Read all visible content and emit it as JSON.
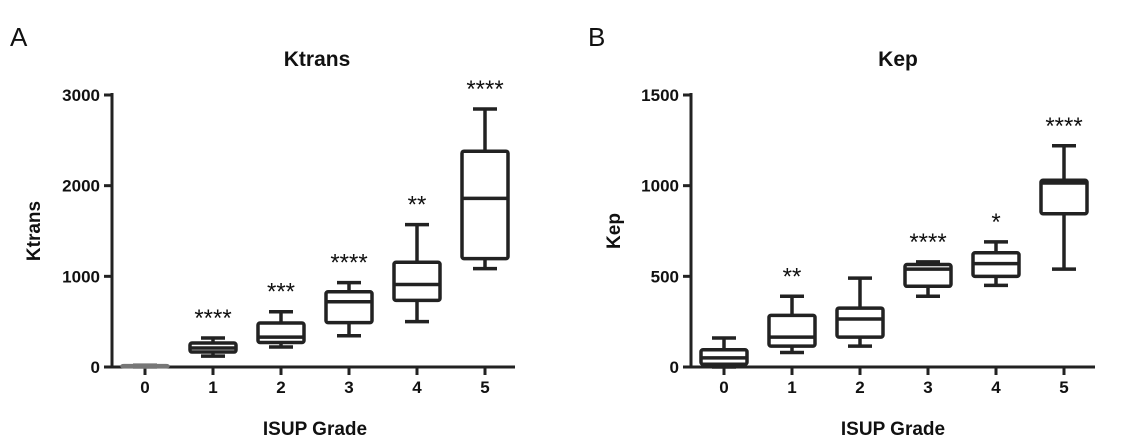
{
  "chart_data": [
    {
      "type": "box",
      "panel_label": "A",
      "title": "Ktrans",
      "xlabel": "ISUP Grade",
      "ylabel": "Ktrans",
      "ylim": [
        0,
        3000
      ],
      "yticks": [
        0,
        1000,
        2000,
        3000
      ],
      "categories": [
        "0",
        "1",
        "2",
        "3",
        "4",
        "5"
      ],
      "boxes": [
        {
          "min": 0,
          "q1": 5,
          "median": 10,
          "q3": 15,
          "max": 20
        },
        {
          "min": 120,
          "q1": 165,
          "median": 210,
          "q3": 265,
          "max": 320
        },
        {
          "min": 220,
          "q1": 270,
          "median": 330,
          "q3": 485,
          "max": 610
        },
        {
          "min": 345,
          "q1": 490,
          "median": 720,
          "q3": 830,
          "max": 930
        },
        {
          "min": 500,
          "q1": 735,
          "median": 910,
          "q3": 1155,
          "max": 1570
        },
        {
          "min": 1085,
          "q1": 1195,
          "median": 1860,
          "q3": 2380,
          "max": 2845
        }
      ],
      "significance": [
        "",
        "****",
        "***",
        "****",
        "**",
        "****"
      ]
    },
    {
      "type": "box",
      "panel_label": "B",
      "title": "Kep",
      "xlabel": "ISUP Grade",
      "ylabel": "Kep",
      "ylim": [
        0,
        1500
      ],
      "yticks": [
        0,
        500,
        1000,
        1500
      ],
      "categories": [
        "0",
        "1",
        "2",
        "3",
        "4",
        "5"
      ],
      "boxes": [
        {
          "min": 0,
          "q1": 15,
          "median": 50,
          "q3": 95,
          "max": 160
        },
        {
          "min": 80,
          "q1": 115,
          "median": 165,
          "q3": 285,
          "max": 390
        },
        {
          "min": 115,
          "q1": 165,
          "median": 265,
          "q3": 325,
          "max": 490
        },
        {
          "min": 390,
          "q1": 445,
          "median": 540,
          "q3": 565,
          "max": 580
        },
        {
          "min": 450,
          "q1": 500,
          "median": 570,
          "q3": 630,
          "max": 690
        },
        {
          "min": 540,
          "q1": 845,
          "median": 1015,
          "q3": 1030,
          "max": 1220
        }
      ],
      "significance": [
        "",
        "**",
        "",
        "****",
        "*",
        "****"
      ]
    }
  ]
}
